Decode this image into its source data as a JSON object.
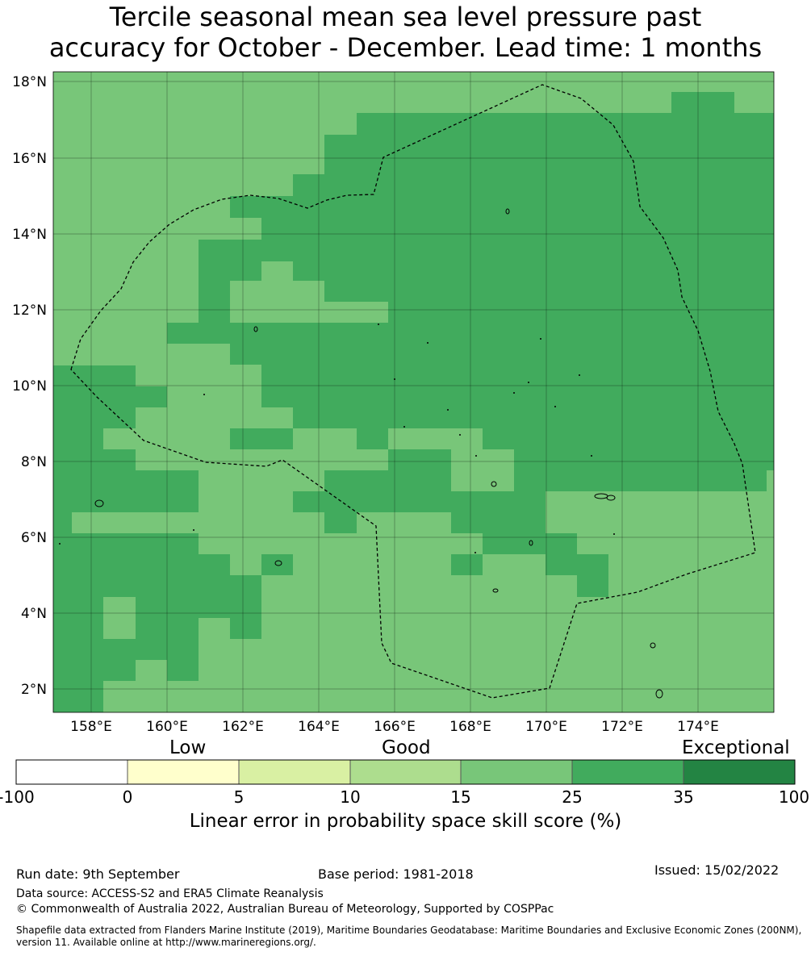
{
  "title_line1": "Tercile seasonal mean sea level pressure past",
  "title_line2": "accuracy for October - December. Lead time: 1 months",
  "map": {
    "lat_labels": [
      "18°N",
      "16°N",
      "14°N",
      "12°N",
      "10°N",
      "8°N",
      "6°N",
      "4°N",
      "2°N"
    ],
    "lon_labels": [
      "158°E",
      "160°E",
      "162°E",
      "164°E",
      "166°E",
      "168°E",
      "170°E",
      "172°E",
      "174°E"
    ],
    "colors": {
      "light_green": "#78c679",
      "mid_green": "#41ab5d",
      "boundary": "#000000"
    }
  },
  "colorbar": {
    "category_labels": [
      "Low",
      "Good",
      "Exceptional"
    ],
    "ticks": [
      "-100",
      "0",
      "5",
      "10",
      "15",
      "25",
      "35",
      "100"
    ],
    "colors": [
      "#ffffff",
      "#ffffcc",
      "#d9f0a3",
      "#addd8e",
      "#78c679",
      "#41ab5d",
      "#238443"
    ],
    "title": "Linear error in probability space skill score (%)"
  },
  "footer": {
    "run_date": "Run date: 9th September",
    "base_period": "Base period: 1981-2018",
    "issued": "Issued: 15/02/2022",
    "data_source": "Data source: ACCESS-S2 and ERA5 Climate Reanalysis",
    "copyright": "© Commonwealth of Australia 2022, Australian Bureau of Meteorology, Supported by COSPPac",
    "shapefile_line1": "Shapefile data extracted from Flanders Marine Institute (2019), Maritime Boundaries Geodatabase: Maritime Boundaries and Exclusive Economic Zones (200NM),",
    "shapefile_line2": "version 11. Available online at http://www.marineregions.org/."
  }
}
